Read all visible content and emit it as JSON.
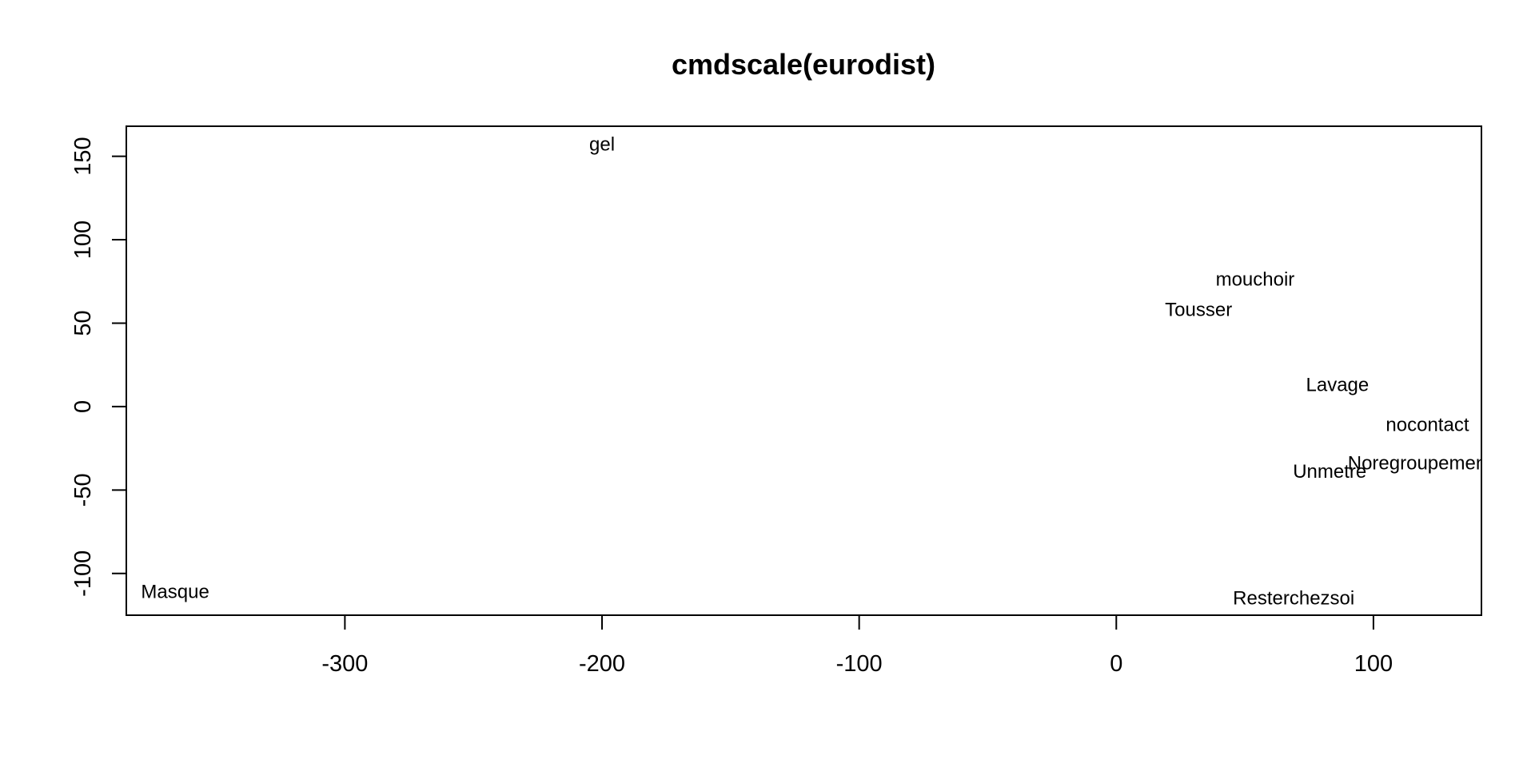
{
  "chart_data": {
    "type": "scatter",
    "title": "cmdscale(eurodist)",
    "xlabel": "",
    "ylabel": "",
    "xlim": [
      -385,
      142
    ],
    "ylim": [
      -125,
      168
    ],
    "x_ticks": [
      -300,
      -200,
      -100,
      0,
      100
    ],
    "x_tick_labels": [
      "-300",
      "-200",
      "-100",
      "0",
      "100"
    ],
    "y_ticks": [
      -100,
      -50,
      0,
      50,
      100,
      150
    ],
    "y_tick_labels": [
      "-100",
      "-50",
      "0",
      "50",
      "100",
      "150"
    ],
    "grid": false,
    "legend": "none",
    "marker": "text-label",
    "points": [
      {
        "label": "gel",
        "x": -200,
        "y": 157
      },
      {
        "label": "mouchoir",
        "x": 54,
        "y": 76
      },
      {
        "label": "Tousser",
        "x": 32,
        "y": 58
      },
      {
        "label": "Lavage",
        "x": 86,
        "y": 13
      },
      {
        "label": "nocontact",
        "x": 121,
        "y": -11
      },
      {
        "label": "Noregroupement",
        "x": 118,
        "y": -34
      },
      {
        "label": "Unmetre",
        "x": 83,
        "y": -39
      },
      {
        "label": "Resterchezsoi",
        "x": 69,
        "y": -115
      },
      {
        "label": "Masque",
        "x": -366,
        "y": -111
      }
    ],
    "colors": {
      "axis": "#000000",
      "text": "#000000",
      "background": "#ffffff"
    }
  }
}
